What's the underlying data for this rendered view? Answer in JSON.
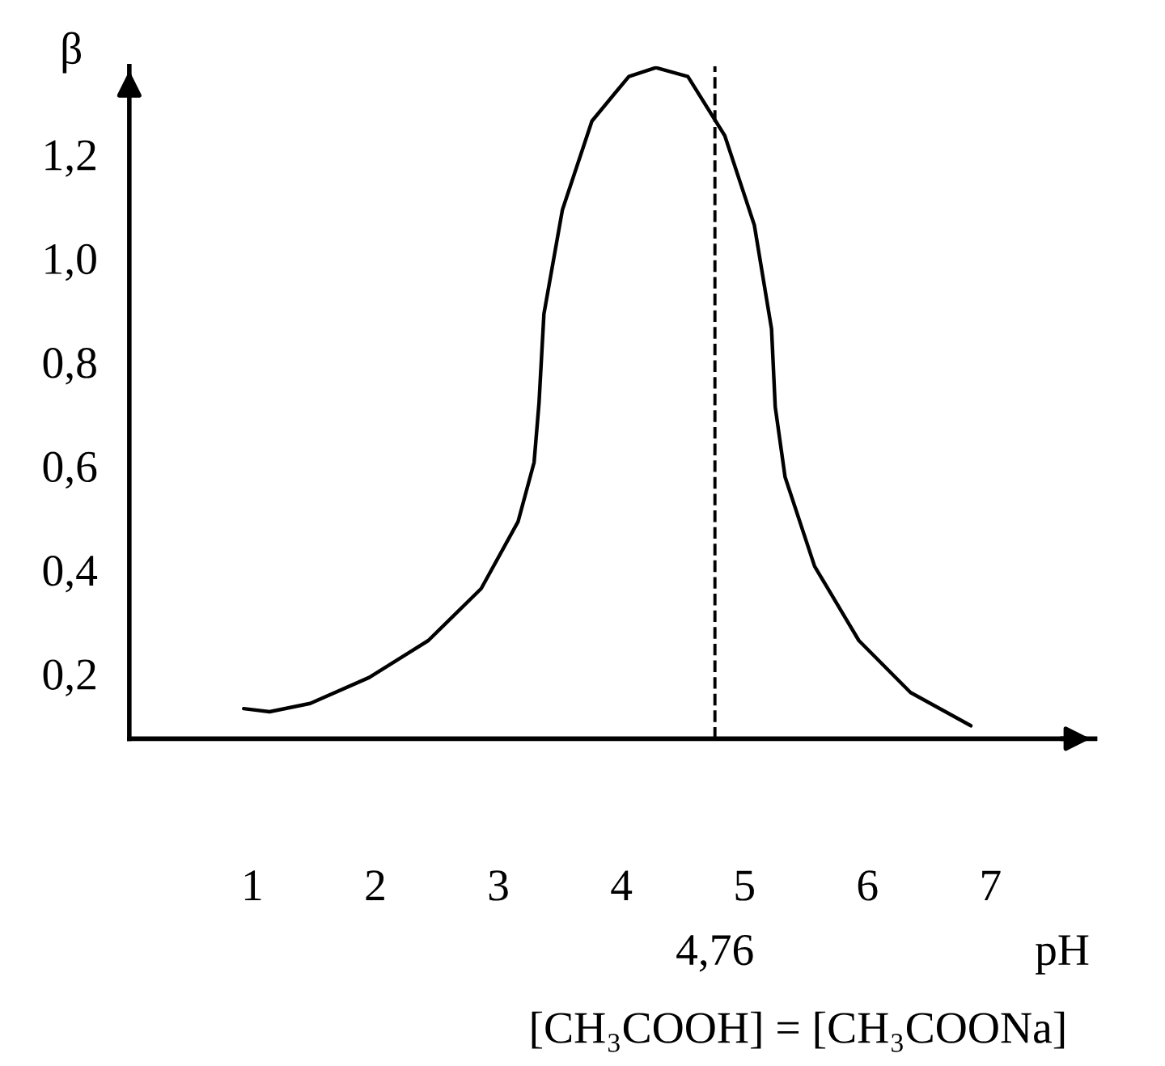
{
  "chart_data": {
    "type": "line",
    "xlabel": "pH",
    "ylabel": "β",
    "x": [
      0.93,
      1.14,
      1.47,
      1.95,
      2.43,
      2.86,
      3.16,
      3.29,
      3.33,
      3.37,
      3.52,
      3.76,
      4.06,
      4.28,
      4.54,
      4.84,
      5.08,
      5.22,
      5.25,
      5.33,
      5.57,
      5.93,
      6.35,
      6.84
    ],
    "series": [
      {
        "color": "#000000",
        "values": [
          0.133,
          0.127,
          0.143,
          0.193,
          0.264,
          0.364,
          0.493,
          0.607,
          0.721,
          0.893,
          1.093,
          1.264,
          1.35,
          1.367,
          1.35,
          1.236,
          1.064,
          0.864,
          0.714,
          0.579,
          0.407,
          0.264,
          0.164,
          0.1
        ]
      }
    ],
    "xlim": [
      0,
      7.85
    ],
    "ylim": [
      0.075,
      1.37
    ],
    "xticks": [
      1,
      2,
      3,
      4,
      5,
      6,
      7
    ],
    "yticks": [
      {
        "value": 0.2,
        "label": "0,2"
      },
      {
        "value": 0.4,
        "label": "0,4"
      },
      {
        "value": 0.6,
        "label": "0,6"
      },
      {
        "value": 0.8,
        "label": "0,8"
      },
      {
        "value": 1.0,
        "label": "1,0"
      },
      {
        "value": 1.2,
        "label": "1,2"
      }
    ],
    "ref_lines": [
      {
        "axis": "x",
        "value": 4.76,
        "label": "4,76",
        "line_style": "dashed",
        "color": "#000000"
      }
    ],
    "annotations": [
      "[CH₃COOH] = [CH₃COONa]"
    ],
    "grid": false,
    "legend": false,
    "marker": "none",
    "line_style": "solid"
  }
}
